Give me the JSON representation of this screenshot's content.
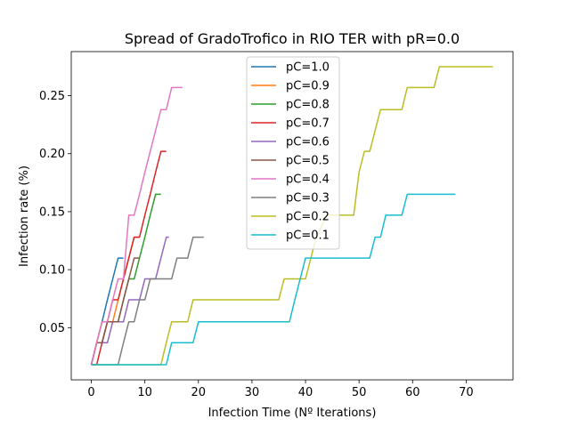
{
  "chart_data": {
    "type": "line",
    "title": "Spread of GradoTrofico in RIO TER with pR=0.0",
    "xlabel": "Infection Time (Nº Iterations)",
    "ylabel": "Infection rate (%)",
    "xlim": [
      -3.75,
      78.75
    ],
    "ylim": [
      0.005,
      0.288
    ],
    "xticks": [
      0,
      10,
      20,
      30,
      40,
      50,
      60,
      70
    ],
    "yticks": [
      0.05,
      0.1,
      0.15,
      0.2,
      0.25
    ],
    "ytick_labels": [
      "0.05",
      "0.10",
      "0.15",
      "0.20",
      "0.25"
    ],
    "grid": false,
    "legend_position": "upper-center",
    "series": [
      {
        "name": "pC=1.0",
        "color": "#1f77b4",
        "points": [
          [
            0,
            0.018
          ],
          [
            1,
            0.037
          ],
          [
            2,
            0.055
          ],
          [
            3,
            0.074
          ],
          [
            4,
            0.092
          ],
          [
            5,
            0.11
          ],
          [
            6,
            0.11
          ]
        ]
      },
      {
        "name": "pC=0.9",
        "color": "#ff7f0e",
        "points": [
          [
            0,
            0.018
          ],
          [
            1,
            0.037
          ],
          [
            2,
            0.055
          ],
          [
            4,
            0.055
          ],
          [
            5,
            0.074
          ],
          [
            6,
            0.092
          ],
          [
            7,
            0.11
          ],
          [
            8,
            0.128
          ],
          [
            9,
            0.128
          ]
        ]
      },
      {
        "name": "pC=0.8",
        "color": "#2ca02c",
        "points": [
          [
            0,
            0.018
          ],
          [
            1,
            0.037
          ],
          [
            2,
            0.037
          ],
          [
            3,
            0.055
          ],
          [
            5,
            0.055
          ],
          [
            6,
            0.074
          ],
          [
            7,
            0.092
          ],
          [
            8,
            0.092
          ],
          [
            9,
            0.11
          ],
          [
            10,
            0.128
          ],
          [
            11,
            0.147
          ],
          [
            12,
            0.165
          ],
          [
            13,
            0.165
          ]
        ]
      },
      {
        "name": "pC=0.7",
        "color": "#d62728",
        "points": [
          [
            0,
            0.018
          ],
          [
            1,
            0.018
          ],
          [
            2,
            0.037
          ],
          [
            3,
            0.055
          ],
          [
            4,
            0.074
          ],
          [
            5,
            0.074
          ],
          [
            6,
            0.092
          ],
          [
            7,
            0.11
          ],
          [
            8,
            0.128
          ],
          [
            9,
            0.128
          ],
          [
            10,
            0.147
          ],
          [
            11,
            0.165
          ],
          [
            12,
            0.184
          ],
          [
            13,
            0.202
          ],
          [
            14,
            0.202
          ]
        ]
      },
      {
        "name": "pC=0.6",
        "color": "#9467bd",
        "points": [
          [
            0,
            0.018
          ],
          [
            1,
            0.037
          ],
          [
            2,
            0.037
          ],
          [
            3,
            0.037
          ],
          [
            4,
            0.055
          ],
          [
            5,
            0.055
          ],
          [
            6,
            0.055
          ],
          [
            7,
            0.074
          ],
          [
            8,
            0.074
          ],
          [
            9,
            0.074
          ],
          [
            10,
            0.092
          ],
          [
            11,
            0.092
          ],
          [
            12,
            0.092
          ],
          [
            13,
            0.11
          ],
          [
            14,
            0.128
          ],
          [
            14.5,
            0.128
          ]
        ]
      },
      {
        "name": "pC=0.5",
        "color": "#8c564b",
        "points": [
          [
            0,
            0.018
          ],
          [
            1,
            0.037
          ],
          [
            2,
            0.037
          ],
          [
            3,
            0.055
          ],
          [
            5,
            0.055
          ],
          [
            6,
            0.074
          ],
          [
            7,
            0.092
          ],
          [
            8,
            0.11
          ],
          [
            9,
            0.11
          ]
        ]
      },
      {
        "name": "pC=0.4",
        "color": "#e377c2",
        "points": [
          [
            0,
            0.018
          ],
          [
            1,
            0.037
          ],
          [
            2,
            0.055
          ],
          [
            3,
            0.055
          ],
          [
            4,
            0.074
          ],
          [
            5,
            0.092
          ],
          [
            6,
            0.092
          ],
          [
            7,
            0.147
          ],
          [
            8,
            0.147
          ],
          [
            9,
            0.165
          ],
          [
            10,
            0.184
          ],
          [
            11,
            0.202
          ],
          [
            12,
            0.22
          ],
          [
            13,
            0.238
          ],
          [
            14,
            0.238
          ],
          [
            15,
            0.257
          ],
          [
            16,
            0.257
          ],
          [
            17,
            0.257
          ]
        ]
      },
      {
        "name": "pC=0.3",
        "color": "#7f7f7f",
        "points": [
          [
            0,
            0.018
          ],
          [
            5,
            0.018
          ],
          [
            6,
            0.037
          ],
          [
            7,
            0.055
          ],
          [
            8,
            0.055
          ],
          [
            9,
            0.074
          ],
          [
            10,
            0.074
          ],
          [
            11,
            0.092
          ],
          [
            15,
            0.092
          ],
          [
            16,
            0.11
          ],
          [
            18,
            0.11
          ],
          [
            19,
            0.128
          ],
          [
            21,
            0.128
          ]
        ]
      },
      {
        "name": "pC=0.2",
        "color": "#bcbd22",
        "points": [
          [
            0,
            0.018
          ],
          [
            13,
            0.018
          ],
          [
            14,
            0.037
          ],
          [
            15,
            0.055
          ],
          [
            18,
            0.055
          ],
          [
            19,
            0.074
          ],
          [
            35,
            0.074
          ],
          [
            36,
            0.092
          ],
          [
            40,
            0.092
          ],
          [
            41,
            0.11
          ],
          [
            42,
            0.128
          ],
          [
            44,
            0.147
          ],
          [
            49,
            0.147
          ],
          [
            50,
            0.184
          ],
          [
            51,
            0.202
          ],
          [
            52,
            0.202
          ],
          [
            54,
            0.238
          ],
          [
            58,
            0.238
          ],
          [
            59,
            0.257
          ],
          [
            64,
            0.257
          ],
          [
            65,
            0.275
          ],
          [
            75,
            0.275
          ]
        ]
      },
      {
        "name": "pC=0.1",
        "color": "#17becf",
        "points": [
          [
            0,
            0.018
          ],
          [
            14,
            0.018
          ],
          [
            15,
            0.037
          ],
          [
            19,
            0.037
          ],
          [
            20,
            0.055
          ],
          [
            37,
            0.055
          ],
          [
            38,
            0.074
          ],
          [
            39,
            0.092
          ],
          [
            40,
            0.11
          ],
          [
            52,
            0.11
          ],
          [
            53,
            0.128
          ],
          [
            54,
            0.128
          ],
          [
            55,
            0.147
          ],
          [
            58,
            0.147
          ],
          [
            59,
            0.165
          ],
          [
            68,
            0.165
          ]
        ]
      }
    ]
  }
}
